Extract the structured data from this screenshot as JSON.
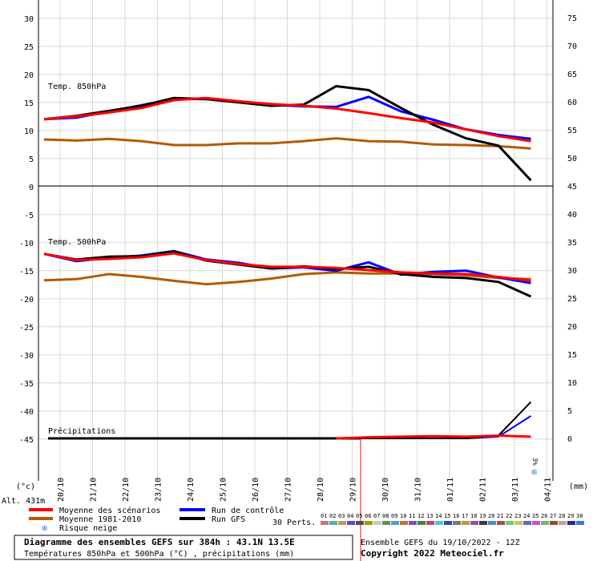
{
  "chart_data": {
    "type": "line",
    "panel_labels": {
      "t850": "Temp. 850hPa",
      "t500": "Temp. 500hPa",
      "precip": "Précipitations"
    },
    "left_axis": {
      "unit": "(°c)",
      "ticks": [
        30,
        25,
        20,
        15,
        10,
        5,
        0,
        -5,
        -10,
        -15,
        -20,
        -25,
        -30,
        -35,
        -40,
        -45
      ]
    },
    "right_axis": {
      "unit": "(mm)",
      "ticks": [
        75,
        70,
        65,
        60,
        55,
        50,
        45,
        40,
        35,
        30,
        25,
        20,
        15,
        10,
        5,
        0
      ]
    },
    "x_dates": [
      "20/10",
      "21/10",
      "22/10",
      "23/10",
      "24/10",
      "25/10",
      "26/10",
      "27/10",
      "28/10",
      "29/10",
      "30/10",
      "31/10",
      "01/11",
      "02/11",
      "03/11",
      "04/11"
    ],
    "altitude_label": "Alt. 431m",
    "snow_risk_label": "3%",
    "legend": {
      "mean": "Moyenne des scénarios",
      "climate": "Moyenne 1981-2010",
      "snow": "Risque neige",
      "control": "Run de contrôle",
      "gfs": "Run GFS",
      "perts_label": "30 Perts."
    },
    "perturbation_ids": [
      "01",
      "02",
      "03",
      "04",
      "05",
      "06",
      "07",
      "08",
      "09",
      "10",
      "11",
      "12",
      "13",
      "14",
      "15",
      "16",
      "17",
      "18",
      "19",
      "20",
      "21",
      "22",
      "23",
      "24",
      "25",
      "26",
      "27",
      "28",
      "29",
      "30"
    ],
    "perturbation_colors": [
      "#c87878",
      "#50b4a0",
      "#c89650",
      "#5050c8",
      "#505050",
      "#a0a000",
      "#c8c8c8",
      "#6e8c50",
      "#50a0c8",
      "#c86e3c",
      "#7850c8",
      "#3c8c3c",
      "#c83c78",
      "#50c8c8",
      "#2850a0",
      "#787878",
      "#b4a03c",
      "#9650b4",
      "#3c3c3c",
      "#508cc8",
      "#a05050",
      "#78c878",
      "#c8c850",
      "#6464c8",
      "#c850c8",
      "#78b478",
      "#8c5028",
      "#c8a0a0",
      "#28288c",
      "#3c78c8"
    ],
    "series": [
      {
        "name": "Moyenne des scénarios",
        "color": "#ff0000",
        "t850": [
          12,
          12.5,
          13.2,
          14,
          15.4,
          15.8,
          15.2,
          14.7,
          14.4,
          13.9,
          13.1,
          12.2,
          11.4,
          10.2,
          9.0,
          8.1
        ],
        "t500": [
          -12,
          -13.1,
          -12.9,
          -12.6,
          -11.9,
          -13.1,
          -13.8,
          -14.3,
          -14.3,
          -14.5,
          -14.9,
          -15.3,
          -15.5,
          -15.6,
          -16.1,
          -16.8
        ],
        "precip": [
          0,
          0,
          0,
          0,
          0,
          0,
          0,
          0,
          0,
          0,
          0.2,
          0.3,
          0.4,
          0.3,
          0.5,
          0.3
        ]
      },
      {
        "name": "Moyenne 1981-2010",
        "color": "#b45a00",
        "t850": [
          8.4,
          8.2,
          8.5,
          8.1,
          7.4,
          7.4,
          7.7,
          7.7,
          8.1,
          8.6,
          8.1,
          8.0,
          7.5,
          7.4,
          7.2,
          6.8
        ],
        "t500": [
          -16.7,
          -16.5,
          -15.6,
          -16.1,
          -16.8,
          -17.4,
          -17.0,
          -16.4,
          -15.6,
          -15.3,
          -15.5,
          -15.5,
          -15.6,
          -15.8,
          -16.3,
          -16.5
        ]
      },
      {
        "name": "Run de contrôle",
        "color": "#0000ff",
        "t850": [
          12,
          12.3,
          13.4,
          14.5,
          15.6,
          15.6,
          15.1,
          14.6,
          14.3,
          14.2,
          16.0,
          13.4,
          11.9,
          10.2,
          9.2,
          8.5
        ],
        "t500": [
          -12,
          -13.3,
          -12.7,
          -12.3,
          -11.5,
          -13.0,
          -13.6,
          -14.6,
          -14.4,
          -15.0,
          -13.5,
          -15.7,
          -15.2,
          -15.0,
          -16.2,
          -17.2
        ],
        "precip": [
          0,
          0,
          0,
          0,
          0,
          0,
          0,
          0,
          0,
          0,
          0,
          0,
          0,
          0,
          0.3,
          4.0
        ]
      },
      {
        "name": "Run GFS",
        "color": "#000000",
        "t850": [
          12,
          12.6,
          13.5,
          14.4,
          15.8,
          15.6,
          15.0,
          14.4,
          14.6,
          17.9,
          17.2,
          14.0,
          11.0,
          8.6,
          7.3,
          1.1
        ],
        "t500": [
          -12,
          -13.0,
          -12.5,
          -12.4,
          -11.6,
          -13.2,
          -13.9,
          -14.6,
          -14.2,
          -14.7,
          -14.3,
          -15.6,
          -16.1,
          -16.3,
          -17.0,
          -19.6
        ],
        "precip": [
          0,
          0,
          0,
          0,
          0,
          0,
          0,
          0,
          0,
          0,
          0,
          0,
          0,
          0,
          0.5,
          6.5
        ]
      }
    ],
    "grid": true,
    "legend_position": "bottom"
  },
  "footer": {
    "title": "Diagramme des ensembles GEFS sur 384h : 43.1N 13.5E",
    "subtitle": "Températures 850hPa et 500hPa (°C) , précipitations (mm)",
    "run": "Ensemble GEFS du 19/10/2022 - 12Z",
    "copyright": "Copyright 2022 Meteociel.fr"
  }
}
